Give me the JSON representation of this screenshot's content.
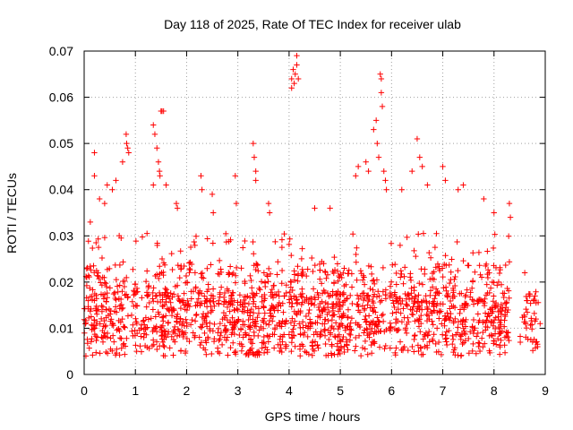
{
  "chart_data": {
    "type": "scatter",
    "title": "Day 118 of 2025, Rate Of TEC Index for receiver ulab",
    "xlabel": "GPS time / hours",
    "ylabel": "ROTI / TECUs",
    "xlim": [
      0,
      9
    ],
    "ylim": [
      0,
      0.07
    ],
    "x_ticks": [
      "0",
      "1",
      "2",
      "3",
      "4",
      "5",
      "6",
      "7",
      "8",
      "9"
    ],
    "y_ticks": [
      "0",
      "0.01",
      "0.02",
      "0.03",
      "0.04",
      "0.05",
      "0.06",
      "0.07"
    ],
    "grid": true,
    "marker": "plus",
    "marker_color": "#ff0000",
    "series": [
      {
        "points": [
          [
            0.05,
            0.021
          ],
          [
            0.12,
            0.033
          ],
          [
            0.2,
            0.048
          ],
          [
            0.2,
            0.043
          ],
          [
            0.3,
            0.038
          ],
          [
            0.4,
            0.037
          ],
          [
            0.45,
            0.041
          ],
          [
            0.55,
            0.04
          ],
          [
            0.62,
            0.042
          ],
          [
            0.75,
            0.046
          ],
          [
            0.82,
            0.052
          ],
          [
            0.83,
            0.05
          ],
          [
            0.85,
            0.049
          ],
          [
            0.87,
            0.048
          ],
          [
            1.35,
            0.054
          ],
          [
            1.38,
            0.052
          ],
          [
            1.42,
            0.049
          ],
          [
            1.45,
            0.046
          ],
          [
            1.47,
            0.044
          ],
          [
            1.48,
            0.043
          ],
          [
            1.5,
            0.057
          ],
          [
            1.52,
            0.057
          ],
          [
            1.55,
            0.057
          ],
          [
            1.6,
            0.041
          ],
          [
            1.35,
            0.041
          ],
          [
            1.8,
            0.037
          ],
          [
            1.82,
            0.036
          ],
          [
            2.28,
            0.043
          ],
          [
            2.3,
            0.04
          ],
          [
            2.5,
            0.039
          ],
          [
            2.52,
            0.035
          ],
          [
            2.95,
            0.043
          ],
          [
            2.97,
            0.037
          ],
          [
            3.3,
            0.05
          ],
          [
            3.32,
            0.047
          ],
          [
            3.35,
            0.044
          ],
          [
            3.35,
            0.042
          ],
          [
            3.6,
            0.037
          ],
          [
            3.62,
            0.035
          ],
          [
            4.05,
            0.064
          ],
          [
            4.08,
            0.066
          ],
          [
            4.1,
            0.063
          ],
          [
            4.12,
            0.065
          ],
          [
            4.15,
            0.069
          ],
          [
            4.15,
            0.067
          ],
          [
            4.18,
            0.064
          ],
          [
            4.05,
            0.062
          ],
          [
            4.5,
            0.036
          ],
          [
            4.8,
            0.036
          ],
          [
            5.3,
            0.043
          ],
          [
            5.35,
            0.045
          ],
          [
            5.5,
            0.046
          ],
          [
            5.55,
            0.044
          ],
          [
            5.65,
            0.053
          ],
          [
            5.7,
            0.055
          ],
          [
            5.72,
            0.05
          ],
          [
            5.75,
            0.047
          ],
          [
            5.78,
            0.065
          ],
          [
            5.8,
            0.064
          ],
          [
            5.8,
            0.061
          ],
          [
            5.82,
            0.058
          ],
          [
            5.85,
            0.044
          ],
          [
            5.88,
            0.042
          ],
          [
            5.9,
            0.04
          ],
          [
            6.2,
            0.04
          ],
          [
            6.4,
            0.044
          ],
          [
            6.5,
            0.051
          ],
          [
            6.55,
            0.047
          ],
          [
            6.6,
            0.045
          ],
          [
            6.7,
            0.041
          ],
          [
            7.0,
            0.045
          ],
          [
            7.05,
            0.042
          ],
          [
            7.3,
            0.04
          ],
          [
            7.4,
            0.041
          ],
          [
            7.8,
            0.038
          ],
          [
            8.0,
            0.035
          ],
          [
            8.3,
            0.037
          ],
          [
            8.32,
            0.034
          ],
          [
            8.6,
            0.022
          ],
          [
            8.65,
            0.016
          ],
          [
            8.8,
            0.017
          ],
          [
            8.82,
            0.012
          ],
          [
            8.85,
            0.006
          ],
          [
            8.9,
            0.011
          ]
        ]
      }
    ],
    "dense_band": {
      "x_range": [
        0.0,
        8.9
      ],
      "y_range": [
        0.002,
        0.03
      ],
      "note_values_count": 1800
    }
  }
}
